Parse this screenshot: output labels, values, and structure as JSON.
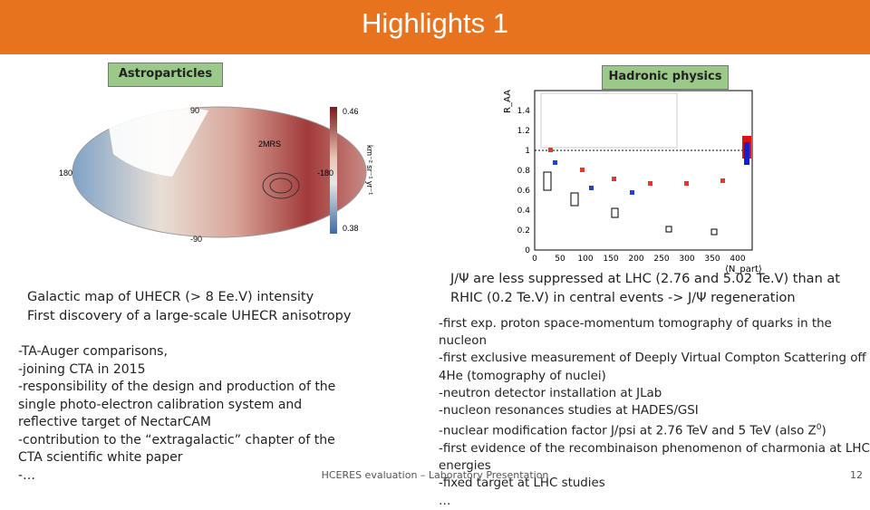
{
  "header": {
    "title": "Highlights 1"
  },
  "left": {
    "label": "Astroparticles",
    "map": {
      "lat_top": "90",
      "lat_bottom": "-90",
      "lon_left": "180",
      "lon_right": "-180",
      "scale_max": "0.46",
      "scale_min": "0.38",
      "catalog": "2MRS",
      "scale_title": "km⁻² sr⁻¹ yr⁻¹"
    },
    "intro": [
      "Galactic map of UHECR (> 8 Ee.V) intensity",
      "First discovery of a large-scale UHECR anisotropy"
    ],
    "items": [
      "-TA-Auger comparisons,",
      "-joining CTA in 2015",
      "-responsibility of the design and production of the single photo-electron calibration system and reflective target of NectarCAM",
      "-contribution to the “extragalactic” chapter of the CTA scientific white paper",
      "-…"
    ]
  },
  "right": {
    "label": "Hadronic physics",
    "plot": {
      "y_label": "R_AA",
      "x_label": "⟨N_part⟩",
      "yticks": [
        "0",
        "0.2",
        "0.4",
        "0.6",
        "0.8",
        "1",
        "1.2",
        "1.4"
      ],
      "xticks": [
        "0",
        "50",
        "100",
        "150",
        "200",
        "250",
        "300",
        "350",
        "400"
      ]
    },
    "intro": "J/Ψ are less suppressed at LHC (2.76 and 5.02 Te.V) than at RHIC (0.2 Te.V) in central events -> J/Ψ regeneration",
    "items": [
      {
        "text": "-first exp. proton space-momentum tomography of quarks in the nucleon"
      },
      {
        "text": "-first exclusive measurement of Deeply Virtual Compton Scattering off 4He (tomography of nuclei)"
      },
      {
        "text": "-neutron detector installation at JLab"
      },
      {
        "text": "-nucleon resonances studies at HADES/GSI"
      },
      {
        "text": "-nuclear modification factor J/psi at 2.76 TeV and 5 TeV (also Z",
        "sup": "0",
        "tail": ")"
      },
      {
        "text": "-first evidence of the recombinaison phenomenon of charmonia at LHC energies"
      },
      {
        "text": "-fixed target at LHC studies"
      },
      {
        "text": "…"
      }
    ]
  },
  "footer": {
    "text": "HCERES evaluation – Laboratory Presentation",
    "page": "12"
  }
}
